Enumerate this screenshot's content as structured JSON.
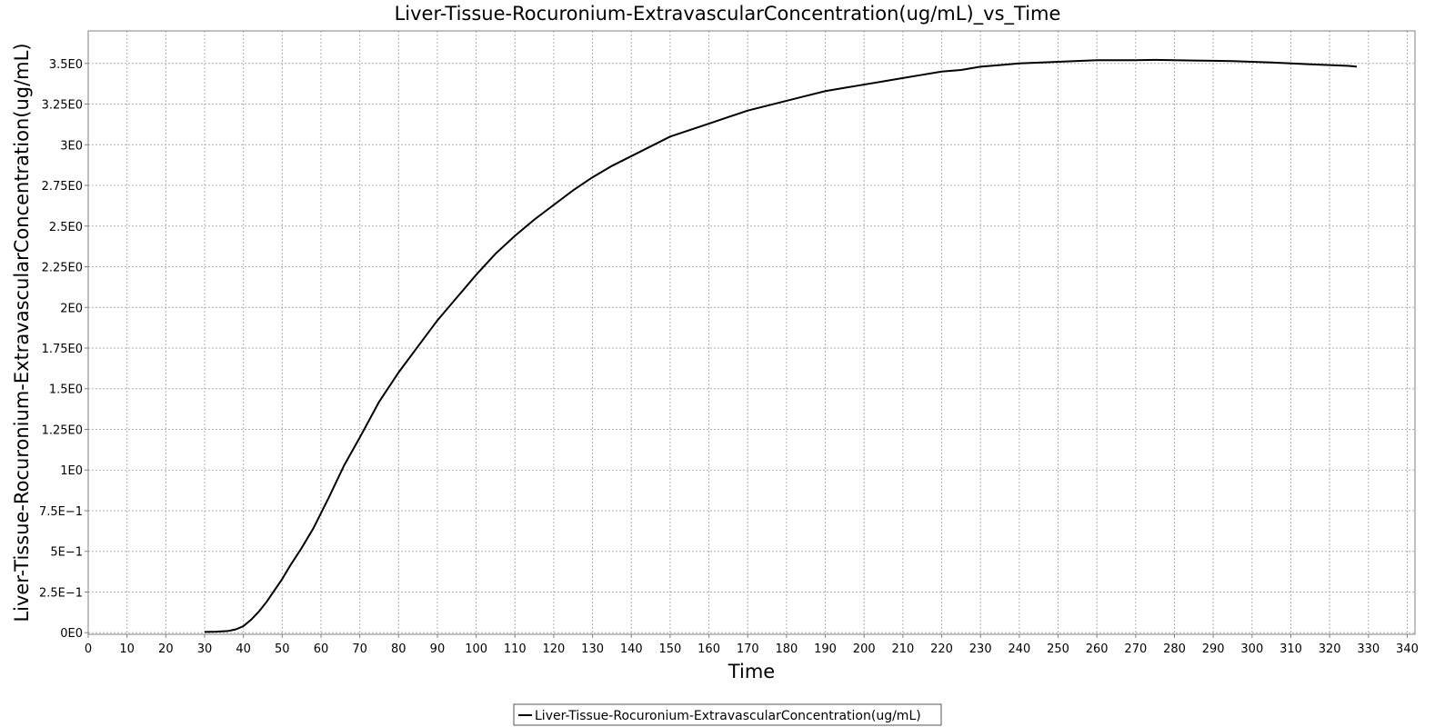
{
  "chart_data": {
    "type": "line",
    "title": "Liver-Tissue-Rocuronium-ExtravascularConcentration(ug/mL)_vs_Time",
    "xlabel": "Time",
    "ylabel": "Liver-Tissue-Rocuronium-ExtravascularConcentration(ug/mL)",
    "xlim": [
      0,
      342
    ],
    "ylim": [
      -0.01,
      3.7
    ],
    "x_ticks": [
      0,
      10,
      20,
      30,
      40,
      50,
      60,
      70,
      80,
      90,
      100,
      110,
      120,
      130,
      140,
      150,
      160,
      170,
      180,
      190,
      200,
      210,
      220,
      230,
      240,
      250,
      260,
      270,
      280,
      290,
      300,
      310,
      320,
      330,
      340
    ],
    "x_tick_labels": [
      "0",
      "10",
      "20",
      "30",
      "40",
      "50",
      "60",
      "70",
      "80",
      "90",
      "100",
      "110",
      "120",
      "130",
      "140",
      "150",
      "160",
      "170",
      "180",
      "190",
      "200",
      "210",
      "220",
      "230",
      "240",
      "250",
      "260",
      "270",
      "280",
      "290",
      "300",
      "310",
      "320",
      "330",
      "340"
    ],
    "y_ticks": [
      0,
      0.25,
      0.5,
      0.75,
      1,
      1.25,
      1.5,
      1.75,
      2,
      2.25,
      2.5,
      2.75,
      3,
      3.25,
      3.5
    ],
    "y_tick_labels": [
      "0E0",
      "2.5E−1",
      "5E−1",
      "7.5E−1",
      "1E0",
      "1.25E0",
      "1.5E0",
      "1.75E0",
      "2E0",
      "2.25E0",
      "2.5E0",
      "2.75E0",
      "3E0",
      "3.25E0",
      "3.5E0"
    ],
    "grid": true,
    "legend_position": "bottom-center",
    "series": [
      {
        "name": "Liver-Tissue-Rocuronium-ExtravascularConcentration(ug/mL)",
        "color": "#000000",
        "x": [
          30,
          33,
          36,
          38,
          40,
          42,
          44,
          46,
          48,
          50,
          52,
          55,
          58,
          62,
          66,
          70,
          75,
          80,
          85,
          90,
          95,
          100,
          105,
          110,
          115,
          120,
          125,
          130,
          135,
          140,
          145,
          150,
          155,
          160,
          165,
          170,
          175,
          180,
          185,
          190,
          195,
          200,
          205,
          210,
          215,
          220,
          225,
          230,
          235,
          240,
          245,
          250,
          255,
          260,
          265,
          270,
          275,
          280,
          285,
          290,
          295,
          300,
          305,
          310,
          315,
          320,
          325,
          327
        ],
        "y": [
          0.005,
          0.006,
          0.01,
          0.02,
          0.04,
          0.08,
          0.13,
          0.19,
          0.26,
          0.33,
          0.41,
          0.52,
          0.64,
          0.83,
          1.03,
          1.2,
          1.42,
          1.6,
          1.76,
          1.92,
          2.06,
          2.2,
          2.33,
          2.44,
          2.54,
          2.63,
          2.72,
          2.8,
          2.87,
          2.93,
          2.99,
          3.05,
          3.09,
          3.13,
          3.17,
          3.21,
          3.24,
          3.27,
          3.3,
          3.33,
          3.35,
          3.37,
          3.39,
          3.41,
          3.43,
          3.45,
          3.46,
          3.48,
          3.49,
          3.5,
          3.505,
          3.51,
          3.515,
          3.52,
          3.52,
          3.52,
          3.522,
          3.52,
          3.518,
          3.516,
          3.514,
          3.51,
          3.506,
          3.5,
          3.495,
          3.49,
          3.485,
          3.48
        ]
      }
    ]
  }
}
